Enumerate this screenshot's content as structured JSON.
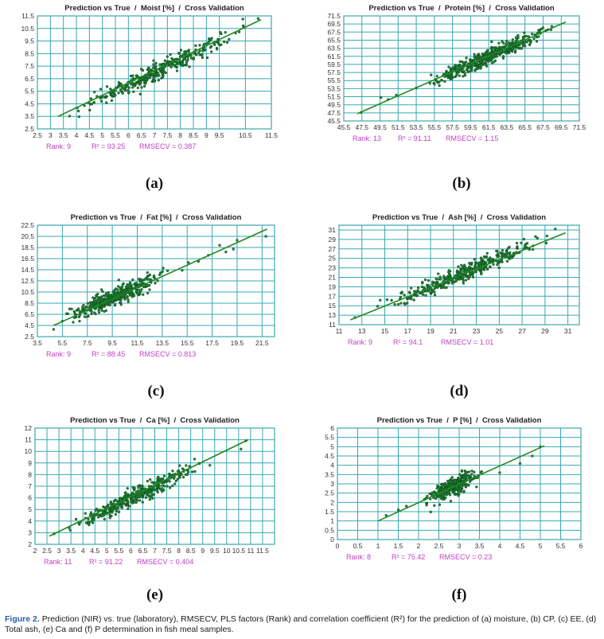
{
  "chart_data": [
    {
      "id": "a",
      "type": "scatter",
      "panel_label": "(a)",
      "title": "Prediction vs True  /  Moist [%]  /  Cross Validation",
      "xlim": [
        2.5,
        11.5
      ],
      "ylim": [
        2.5,
        11.5
      ],
      "xticks": [
        "2.5",
        "3",
        "3.5",
        "4",
        "4.5",
        "5",
        "5.5",
        "6",
        "6.5",
        "7",
        "7.5",
        "8",
        "8.5",
        "9",
        "9.5",
        "10.5",
        "11.5"
      ],
      "yticks": [
        "2.5",
        "3.5",
        "4.5",
        "5.5",
        "6.5",
        "7.5",
        "8.5",
        "9.5",
        "10.5",
        "11.5"
      ],
      "line": [
        [
          3.3,
          3.5
        ],
        [
          11.1,
          11.2
        ]
      ],
      "points_range": [
        3.3,
        11.1
      ],
      "spread": 0.35,
      "n": 360,
      "stats": {
        "rank": "Rank: 9",
        "r2": "R² = 93.25",
        "rmsecv": "RMSECV = 0.387"
      }
    },
    {
      "id": "b",
      "type": "scatter",
      "panel_label": "(b)",
      "title": "Prediction vs True  /  Protein [%]  /  Cross Validation",
      "xlim": [
        45.5,
        71.5
      ],
      "ylim": [
        45.5,
        71.5
      ],
      "xticks": [
        "45.5",
        "47.5",
        "49.5",
        "51.5",
        "53.5",
        "55.5",
        "57.5",
        "59.5",
        "61.5",
        "63.5",
        "65.5",
        "67.5",
        "69.5",
        "71.5"
      ],
      "yticks": [
        "45.5",
        "47.5",
        "49.5",
        "51.5",
        "53.5",
        "55.5",
        "57.5",
        "59.5",
        "61.5",
        "63.5",
        "65.5",
        "67.5",
        "69.5",
        "71.5"
      ],
      "line": [
        [
          47.0,
          47.3
        ],
        [
          70.0,
          70.0
        ]
      ],
      "points_range": [
        53.0,
        69.8
      ],
      "spread": 1.0,
      "n": 420,
      "extra_points": [
        [
          47.4,
          47.6
        ],
        [
          49.6,
          51.3
        ],
        [
          50.4,
          50.8
        ],
        [
          51.3,
          51.9
        ]
      ],
      "stats": {
        "rank": "Rank: 13",
        "r2": "R² = 91.11",
        "rmsecv": "RMSECV = 1.15"
      }
    },
    {
      "id": "c",
      "type": "scatter",
      "panel_label": "(c)",
      "title": "Prediction vs True  /  Fat [%]  /  Cross Validation",
      "xlim": [
        3.5,
        22.5
      ],
      "ylim": [
        2.5,
        22.5
      ],
      "xticks": [
        "3.5",
        "5.5",
        "7.5",
        "9.5",
        "11.5",
        "13.5",
        "15.5",
        "17.5",
        "19.5",
        "21.5"
      ],
      "yticks": [
        "2.5",
        "4.5",
        "6.5",
        "8.5",
        "10.5",
        "12.5",
        "14.5",
        "16.5",
        "18.5",
        "20.5",
        "22.5"
      ],
      "line": [
        [
          4.8,
          4.5
        ],
        [
          21.9,
          21.8
        ]
      ],
      "points_range": [
        5.0,
        14.5
      ],
      "spread": 0.75,
      "n": 420,
      "extra_points": [
        [
          15.1,
          14.4
        ],
        [
          15.6,
          15.8
        ],
        [
          16.4,
          16.0
        ],
        [
          17.2,
          17.1
        ],
        [
          18.1,
          18.9
        ],
        [
          18.6,
          17.7
        ],
        [
          19.2,
          18.2
        ],
        [
          19.5,
          19.8
        ],
        [
          21.8,
          20.5
        ],
        [
          4.8,
          3.8
        ]
      ],
      "stats": {
        "rank": "Rank: 9",
        "r2": "R² = 88.45",
        "rmsecv": "RMSECV = 0.813"
      }
    },
    {
      "id": "d",
      "type": "scatter",
      "panel_label": "(d)",
      "title": "Prediction vs True  /  Ash [%]  /  Cross Validation",
      "xlim": [
        11,
        32
      ],
      "ylim": [
        11,
        32
      ],
      "xticks": [
        "11",
        "13",
        "15",
        "17",
        "19",
        "21",
        "23",
        "25",
        "27",
        "29",
        "31"
      ],
      "yticks": [
        "11",
        "13",
        "15",
        "17",
        "19",
        "21",
        "23",
        "25",
        "27",
        "29",
        "31"
      ],
      "line": [
        [
          12.0,
          12.0
        ],
        [
          30.8,
          30.4
        ]
      ],
      "points_range": [
        13.0,
        30.5
      ],
      "spread": 0.9,
      "n": 400,
      "extra_points": [
        [
          12.4,
          12.5
        ],
        [
          29.9,
          31.2
        ]
      ],
      "stats": {
        "rank": "Rank: 9",
        "r2": "R² = 94.1",
        "rmsecv": "RMSECV = 1.01"
      }
    },
    {
      "id": "e",
      "type": "scatter",
      "panel_label": "(e)",
      "title": "Prediction vs True  /  Ca [%]  /  Cross Validation",
      "xlim": [
        2,
        12
      ],
      "ylim": [
        2,
        12
      ],
      "xticks": [
        "2",
        "2.5",
        "3",
        "3.5",
        "4",
        "4.5",
        "5",
        "5.5",
        "6",
        "6.5",
        "7",
        "7.5",
        "8",
        "8.5",
        "9",
        "9.5",
        "10",
        "10.5",
        "11",
        "11.5"
      ],
      "yticks": [
        "2",
        "3",
        "4",
        "5",
        "6",
        "7",
        "8",
        "9",
        "10",
        "11",
        "12"
      ],
      "line": [
        [
          2.6,
          2.7
        ],
        [
          10.9,
          11.0
        ]
      ],
      "points_range": [
        3.0,
        9.5
      ],
      "spread": 0.35,
      "n": 380,
      "extra_points": [
        [
          10.6,
          10.2
        ],
        [
          10.8,
          10.9
        ],
        [
          2.8,
          2.9
        ],
        [
          9.3,
          8.8
        ]
      ],
      "stats": {
        "rank": "Rank: 11",
        "r2": "R² = 91.22",
        "rmsecv": "RMSECV = 0.404"
      }
    },
    {
      "id": "f",
      "type": "scatter",
      "panel_label": "(f)",
      "title": "Prediction vs True  /  P [%]  /  Cross Validation",
      "xlim": [
        0,
        6
      ],
      "ylim": [
        0,
        6
      ],
      "xticks": [
        "0",
        "0.5",
        "1",
        "1.5",
        "2",
        "2.5",
        "3",
        "3.5",
        "4",
        "4.5",
        "5",
        "5.5",
        "6"
      ],
      "yticks": [
        "0",
        "0.5",
        "1",
        "1.5",
        "2",
        "2.5",
        "3",
        "3.5",
        "4",
        "4.5",
        "5",
        "5.5",
        "6"
      ],
      "line": [
        [
          1.0,
          1.0
        ],
        [
          5.1,
          5.05
        ]
      ],
      "points_range": [
        2.0,
        3.7
      ],
      "spread": 0.25,
      "n": 320,
      "extra_points": [
        [
          1.2,
          1.3
        ],
        [
          1.5,
          1.6
        ],
        [
          1.7,
          1.8
        ],
        [
          4.5,
          4.1
        ],
        [
          4.8,
          4.5
        ],
        [
          5.0,
          5.0
        ],
        [
          4.0,
          3.6
        ]
      ],
      "stats": {
        "rank": "Rank: 8",
        "r2": "R² = 75.42",
        "rmsecv": "RMSECV = 0.23"
      }
    }
  ],
  "colors": {
    "grid": "#38a8b0",
    "regression": "#1f8a1f",
    "point_fill": "#1e8a3a",
    "point_edge": "#0d3b14",
    "stats_text": "#c040c0"
  },
  "caption": {
    "label": "Figure 2.",
    "text": "Prediction (NIR) vs. true (laboratory), RMSECV, PLS factors (Rank) and correlation coefficient (R²) for the prediction of (a) moisture, (b) CP, (c) EE, (d) Total ash, (e) Ca and (f) P determination in fish meal samples."
  }
}
